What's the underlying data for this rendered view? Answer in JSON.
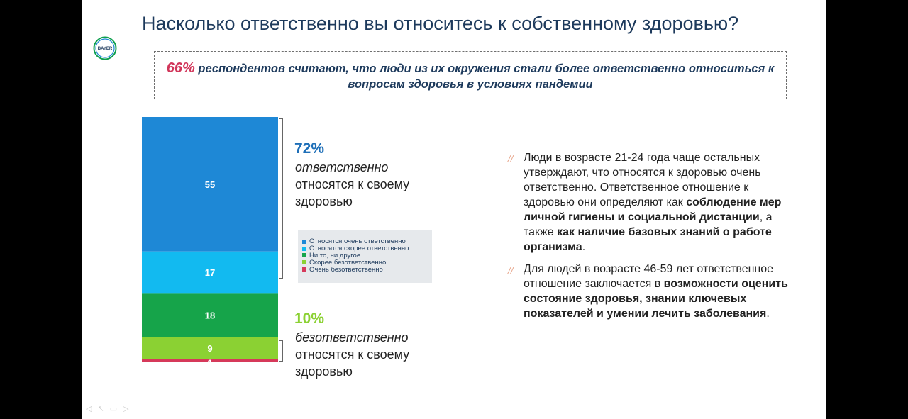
{
  "slide": {
    "title": "Насколько ответственно вы относитесь к собственному здоровью?",
    "logo_text": "BAYER",
    "callout": {
      "percent": "66%",
      "text": " респондентов считают, что люди из их окружения стали более ответственно относиться к вопросам здоровья в условиях пандемии"
    },
    "responsible": {
      "percent": "72%",
      "line1": "ответственно",
      "line2": "относятся к своему",
      "line3": "здоровью"
    },
    "irresponsible": {
      "percent": "10%",
      "line1": "безответственно",
      "line2": "относятся к своему",
      "line3": "здоровью"
    },
    "insight1": {
      "part1": "Люди в возрасте 21-24 года чаще остальных утверждают, что относятся к здоровью очень ответственно. Ответственное отношение к здоровью они определяют как ",
      "bold1": "соблюдение мер личной гигиены и социальной дистанции",
      "part2": ", а также ",
      "bold2": "как наличие базовых знаний о работе организма",
      "part3": "."
    },
    "insight2": {
      "part1": "Для людей в возрасте 46-59 лет ответственное отношение заключается в ",
      "bold1": "возможности оценить состояние здоровья, знании ключевых показателей и умении лечить заболевания",
      "part2": "."
    },
    "slash": "//"
  },
  "chart_data": {
    "type": "bar",
    "stacked": true,
    "categories": [
      ""
    ],
    "series": [
      {
        "name": "Относятся очень ответственно",
        "values": [
          55
        ],
        "color": "#1e88d6"
      },
      {
        "name": "Относятся скорее ответственно",
        "values": [
          17
        ],
        "color": "#12baf0"
      },
      {
        "name": "Ни то, ни другое",
        "values": [
          18
        ],
        "color": "#16a44a"
      },
      {
        "name": "Скорее безответственно",
        "values": [
          9
        ],
        "color": "#8bd133"
      },
      {
        "name": "Очень безответственно",
        "values": [
          1
        ],
        "color": "#d6395a"
      }
    ],
    "legend_position": "right"
  }
}
